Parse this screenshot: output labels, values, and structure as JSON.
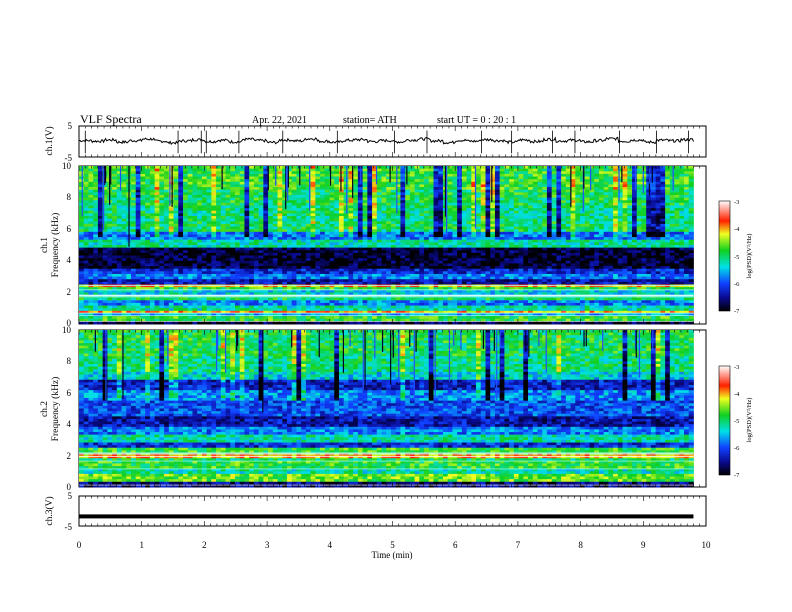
{
  "header": {
    "title": "VLF  Spectra",
    "date": "Apr. 22, 2021",
    "station": "station= ATH",
    "start": "start  UT  =    0  : 20 : 1"
  },
  "chart_data": {
    "type": "heatmap",
    "xlabel": "Time  (min)",
    "xlim": [
      0,
      10
    ],
    "xticks": [
      "0",
      "1",
      "2",
      "3",
      "4",
      "5",
      "6",
      "7",
      "8",
      "9",
      "10"
    ],
    "data_end_min": 9.8,
    "panels": [
      {
        "kind": "line",
        "ylabel": "ch.1(V)",
        "ylim": [
          -5,
          5
        ],
        "yticks": [
          "5",
          "-5"
        ],
        "mean_value": 0.2,
        "trace": [
          0.3,
          0.1,
          0.5,
          -0.2,
          0.3,
          0.8,
          0.1,
          -0.4,
          0.2,
          0.6,
          0.0,
          0.4,
          -0.1,
          0.7,
          0.3,
          -0.3,
          0.5,
          0.2,
          0.9,
          0.1,
          -0.2,
          0.4,
          0.6,
          0.0,
          0.3,
          -0.1,
          0.5,
          0.8,
          0.2,
          -0.3,
          0.4,
          0.1,
          0.6,
          0.3,
          -0.2,
          0.5,
          0.0,
          0.7,
          0.2,
          0.4,
          -0.1,
          0.3,
          0.9,
          0.1,
          0.5,
          -0.2,
          0.4,
          0.2,
          0.6,
          0.0
        ],
        "spikes_min": [
          0.1,
          1.58,
          1.95,
          2.03,
          2.55,
          3.25,
          4.12,
          5.03,
          5.55,
          6.42,
          6.9,
          7.55,
          7.91,
          8.62,
          9.21,
          9.72
        ]
      },
      {
        "kind": "spectrogram",
        "ylabel_channel": "ch.1",
        "ylabel": "Frequency  (kHz)",
        "ylim": [
          0,
          10
        ],
        "yticks": [
          "0",
          "2",
          "4",
          "6",
          "8",
          "10"
        ],
        "colorbar": {
          "label": "log(PSD)(V²/Hz)",
          "range": [
            -7,
            -3
          ],
          "ticks": [
            "-3",
            "-4",
            "-5",
            "-6",
            "-7"
          ]
        },
        "bands": [
          {
            "from": 0.0,
            "to": 0.2,
            "level": 0.05
          },
          {
            "from": 0.2,
            "to": 0.5,
            "level": 0.55
          },
          {
            "from": 0.5,
            "to": 0.7,
            "level": 0.35
          },
          {
            "from": 0.7,
            "to": 0.9,
            "level": 0.75
          },
          {
            "from": 0.9,
            "to": 1.2,
            "level": 0.45
          },
          {
            "from": 1.2,
            "to": 1.5,
            "level": 0.3
          },
          {
            "from": 1.5,
            "to": 1.8,
            "level": 0.5
          },
          {
            "from": 1.8,
            "to": 2.1,
            "level": 0.4
          },
          {
            "from": 2.1,
            "to": 2.3,
            "level": 0.55
          },
          {
            "from": 2.3,
            "to": 2.5,
            "level": 0.75
          },
          {
            "from": 2.5,
            "to": 2.9,
            "level": 0.15
          },
          {
            "from": 2.9,
            "to": 3.2,
            "level": 0.3
          },
          {
            "from": 3.2,
            "to": 3.5,
            "level": 0.2
          },
          {
            "from": 3.5,
            "to": 4.9,
            "level": 0.04
          },
          {
            "from": 4.9,
            "to": 5.3,
            "level": 0.45
          },
          {
            "from": 5.3,
            "to": 5.8,
            "level": 0.3
          },
          {
            "from": 5.8,
            "to": 6.5,
            "level": 0.5
          },
          {
            "from": 6.5,
            "to": 7.5,
            "level": 0.48
          },
          {
            "from": 7.5,
            "to": 8.5,
            "level": 0.52
          },
          {
            "from": 8.5,
            "to": 10.0,
            "level": 0.56
          }
        ]
      },
      {
        "kind": "spectrogram",
        "ylabel_channel": "ch.2",
        "ylabel": "Frequency  (kHz)",
        "ylim": [
          0,
          10
        ],
        "yticks": [
          "0",
          "2",
          "4",
          "6",
          "8",
          "10"
        ],
        "colorbar": {
          "label": "log(PSD)(V²/Hz)",
          "range": [
            -7,
            -3
          ],
          "ticks": [
            "-3",
            "-4",
            "-5",
            "-6",
            "-7"
          ]
        },
        "bands": [
          {
            "from": 0.0,
            "to": 0.3,
            "level": 0.1
          },
          {
            "from": 0.3,
            "to": 0.8,
            "level": 0.6
          },
          {
            "from": 0.8,
            "to": 1.2,
            "level": 0.45
          },
          {
            "from": 1.2,
            "to": 1.6,
            "level": 0.55
          },
          {
            "from": 1.6,
            "to": 1.9,
            "level": 0.5
          },
          {
            "from": 1.9,
            "to": 2.1,
            "level": 0.75
          },
          {
            "from": 2.1,
            "to": 2.5,
            "level": 0.55
          },
          {
            "from": 2.5,
            "to": 2.9,
            "level": 0.2
          },
          {
            "from": 2.9,
            "to": 3.4,
            "level": 0.45
          },
          {
            "from": 3.4,
            "to": 3.9,
            "level": 0.3
          },
          {
            "from": 3.9,
            "to": 4.5,
            "level": 0.15
          },
          {
            "from": 4.5,
            "to": 5.5,
            "level": 0.25
          },
          {
            "from": 5.5,
            "to": 6.2,
            "level": 0.32
          },
          {
            "from": 6.2,
            "to": 6.8,
            "level": 0.18
          },
          {
            "from": 6.8,
            "to": 7.3,
            "level": 0.4
          },
          {
            "from": 7.3,
            "to": 8.3,
            "level": 0.48
          },
          {
            "from": 8.3,
            "to": 10.0,
            "level": 0.52
          }
        ]
      },
      {
        "kind": "line",
        "ylabel": "ch.3(V)",
        "ylim": [
          -5,
          5
        ],
        "yticks": [
          "5",
          "-5"
        ],
        "mean_value": -1.8,
        "trace": [],
        "spikes_min": []
      }
    ]
  }
}
